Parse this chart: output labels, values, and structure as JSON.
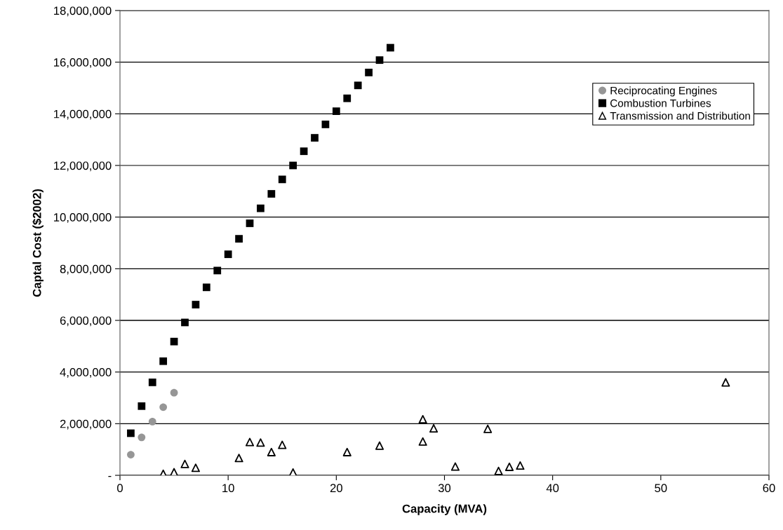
{
  "chart_data": {
    "type": "scatter",
    "xlabel": "Capacity (MVA)",
    "ylabel": "Captal Cost ($2002)",
    "xlim": [
      0,
      60
    ],
    "xticks": [
      0,
      10,
      20,
      30,
      40,
      50,
      60
    ],
    "ylim": [
      0,
      18000000
    ],
    "yticks": [
      {
        "value": 0,
        "label": "-"
      },
      {
        "value": 2000000,
        "label": "2,000,000"
      },
      {
        "value": 4000000,
        "label": "4,000,000"
      },
      {
        "value": 6000000,
        "label": "6,000,000"
      },
      {
        "value": 8000000,
        "label": "8,000,000"
      },
      {
        "value": 10000000,
        "label": "10,000,000"
      },
      {
        "value": 12000000,
        "label": "12,000,000"
      },
      {
        "value": 14000000,
        "label": "14,000,000"
      },
      {
        "value": 16000000,
        "label": "16,000,000"
      },
      {
        "value": 18000000,
        "label": "18,000,000"
      }
    ],
    "grid": "y",
    "legend": "top right",
    "series": [
      {
        "name": "Reciprocating Engines",
        "color": "#969696",
        "marker": "circle",
        "x": [
          1,
          2,
          3,
          4,
          5
        ],
        "values": [
          800000,
          1470000,
          2080000,
          2640000,
          3200000
        ]
      },
      {
        "name": "Combustion Turbines",
        "color": "#000000",
        "marker": "square",
        "x": [
          1,
          2,
          3,
          4,
          5,
          6,
          7,
          8,
          9,
          10,
          11,
          12,
          13,
          14,
          15,
          16,
          17,
          18,
          19,
          20,
          21,
          22,
          23,
          24,
          25
        ],
        "values": [
          1630000,
          2680000,
          3600000,
          4420000,
          5180000,
          5920000,
          6610000,
          7280000,
          7930000,
          8560000,
          9160000,
          9760000,
          10340000,
          10900000,
          11460000,
          12000000,
          12550000,
          13070000,
          13590000,
          14100000,
          14600000,
          15100000,
          15600000,
          16080000,
          16560000
        ]
      },
      {
        "name": "Transmission and Distribution",
        "color": "#000000",
        "marker": "triangle",
        "x": [
          4,
          5,
          6,
          7,
          11,
          12,
          13,
          14,
          15,
          16,
          21,
          24,
          28,
          28,
          29,
          31,
          34,
          35,
          36,
          37,
          56
        ],
        "values": [
          60000,
          120000,
          440000,
          290000,
          670000,
          1290000,
          1270000,
          900000,
          1180000,
          110000,
          900000,
          1150000,
          2170000,
          1310000,
          1820000,
          340000,
          1800000,
          170000,
          330000,
          380000,
          3600000
        ]
      }
    ]
  }
}
